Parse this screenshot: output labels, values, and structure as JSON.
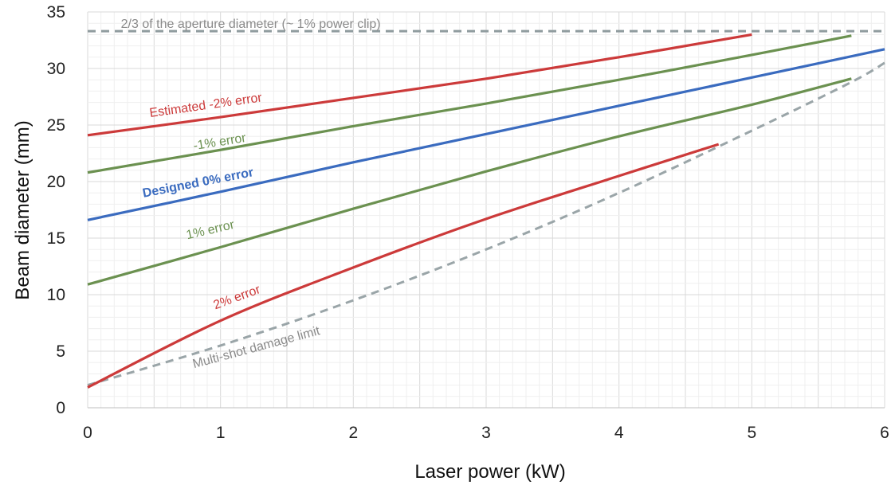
{
  "chart_data": {
    "type": "line",
    "title": "",
    "xlabel": "Laser power (kW)",
    "ylabel": "Beam diameter (mm)",
    "xlim": [
      0,
      6
    ],
    "ylim": [
      0,
      35
    ],
    "x_ticks": [
      0,
      1,
      2,
      3,
      4,
      5,
      6
    ],
    "y_ticks": [
      0,
      5,
      10,
      15,
      20,
      25,
      30,
      35
    ],
    "grid": true,
    "legend": "none",
    "series": [
      {
        "id": "aperture",
        "name": "2/3 of the aperture diameter (~ 1% power clip)",
        "color": "#8f9b9e",
        "dashed": true,
        "bold": false,
        "points": [
          [
            0,
            33.3
          ],
          [
            6,
            33.3
          ]
        ]
      },
      {
        "id": "damage",
        "name": "Multi-shot damage limit",
        "color": "#9aa5a8",
        "dashed": true,
        "bold": false,
        "points": [
          [
            0,
            2.0
          ],
          [
            1,
            5.5
          ],
          [
            2,
            9.5
          ],
          [
            3,
            14.0
          ],
          [
            4,
            19.0
          ],
          [
            5,
            24.5
          ],
          [
            5.75,
            28.8
          ],
          [
            6,
            30.5
          ]
        ]
      },
      {
        "id": "est_minus2",
        "name": "Estimated -2% error",
        "color": "#cc3a3a",
        "dashed": false,
        "bold": false,
        "points": [
          [
            0,
            24.1
          ],
          [
            1,
            25.7
          ],
          [
            2,
            27.4
          ],
          [
            3,
            29.1
          ],
          [
            4,
            31.0
          ],
          [
            5,
            33.0
          ]
        ]
      },
      {
        "id": "minus1",
        "name": "-1% error",
        "color": "#6b9150",
        "dashed": false,
        "bold": false,
        "points": [
          [
            0,
            20.8
          ],
          [
            1,
            22.8
          ],
          [
            2,
            24.9
          ],
          [
            3,
            26.9
          ],
          [
            4,
            29.0
          ],
          [
            5,
            31.2
          ],
          [
            5.75,
            32.9
          ]
        ]
      },
      {
        "id": "designed0",
        "name": "Designed 0% error",
        "color": "#3a6bbf",
        "dashed": false,
        "bold": true,
        "points": [
          [
            0,
            16.6
          ],
          [
            1,
            19.1
          ],
          [
            2,
            21.7
          ],
          [
            3,
            24.2
          ],
          [
            4,
            26.7
          ],
          [
            5,
            29.2
          ],
          [
            6,
            31.7
          ]
        ]
      },
      {
        "id": "plus1",
        "name": "1% error",
        "color": "#6b9150",
        "dashed": false,
        "bold": false,
        "points": [
          [
            0,
            10.9
          ],
          [
            1,
            14.2
          ],
          [
            2,
            17.6
          ],
          [
            3,
            20.9
          ],
          [
            4,
            24.0
          ],
          [
            5,
            26.8
          ],
          [
            5.75,
            29.1
          ]
        ]
      },
      {
        "id": "plus2",
        "name": "2% error",
        "color": "#cc3a3a",
        "dashed": false,
        "bold": false,
        "points": [
          [
            0,
            1.8
          ],
          [
            1,
            7.7
          ],
          [
            2,
            12.4
          ],
          [
            3,
            16.7
          ],
          [
            4,
            20.5
          ],
          [
            4.75,
            23.3
          ]
        ]
      }
    ],
    "annotations": [
      {
        "text": "2/3 of the aperture diameter (~ 1% power clip)",
        "x": 0.25,
        "y": 33.6,
        "angle": 0,
        "color": "#8a8a8a",
        "bold": false
      },
      {
        "text": "Estimated -2% error",
        "x": 0.47,
        "y": 25.7,
        "angle": -8,
        "color": "#cc3a3a",
        "bold": false
      },
      {
        "text": "-1% error",
        "x": 0.8,
        "y": 22.8,
        "angle": -9,
        "color": "#6b9150",
        "bold": false
      },
      {
        "text": "Designed 0% error",
        "x": 0.42,
        "y": 18.6,
        "angle": -11,
        "color": "#3a6bbf",
        "bold": true
      },
      {
        "text": "1% error",
        "x": 0.75,
        "y": 14.9,
        "angle": -13,
        "color": "#6b9150",
        "bold": false
      },
      {
        "text": "2% error",
        "x": 0.96,
        "y": 8.7,
        "angle": -20,
        "color": "#cc3a3a",
        "bold": false
      },
      {
        "text": "Multi-shot damage limit",
        "x": 0.8,
        "y": 3.5,
        "angle": -15,
        "color": "#8a8a8a",
        "bold": false
      }
    ]
  }
}
